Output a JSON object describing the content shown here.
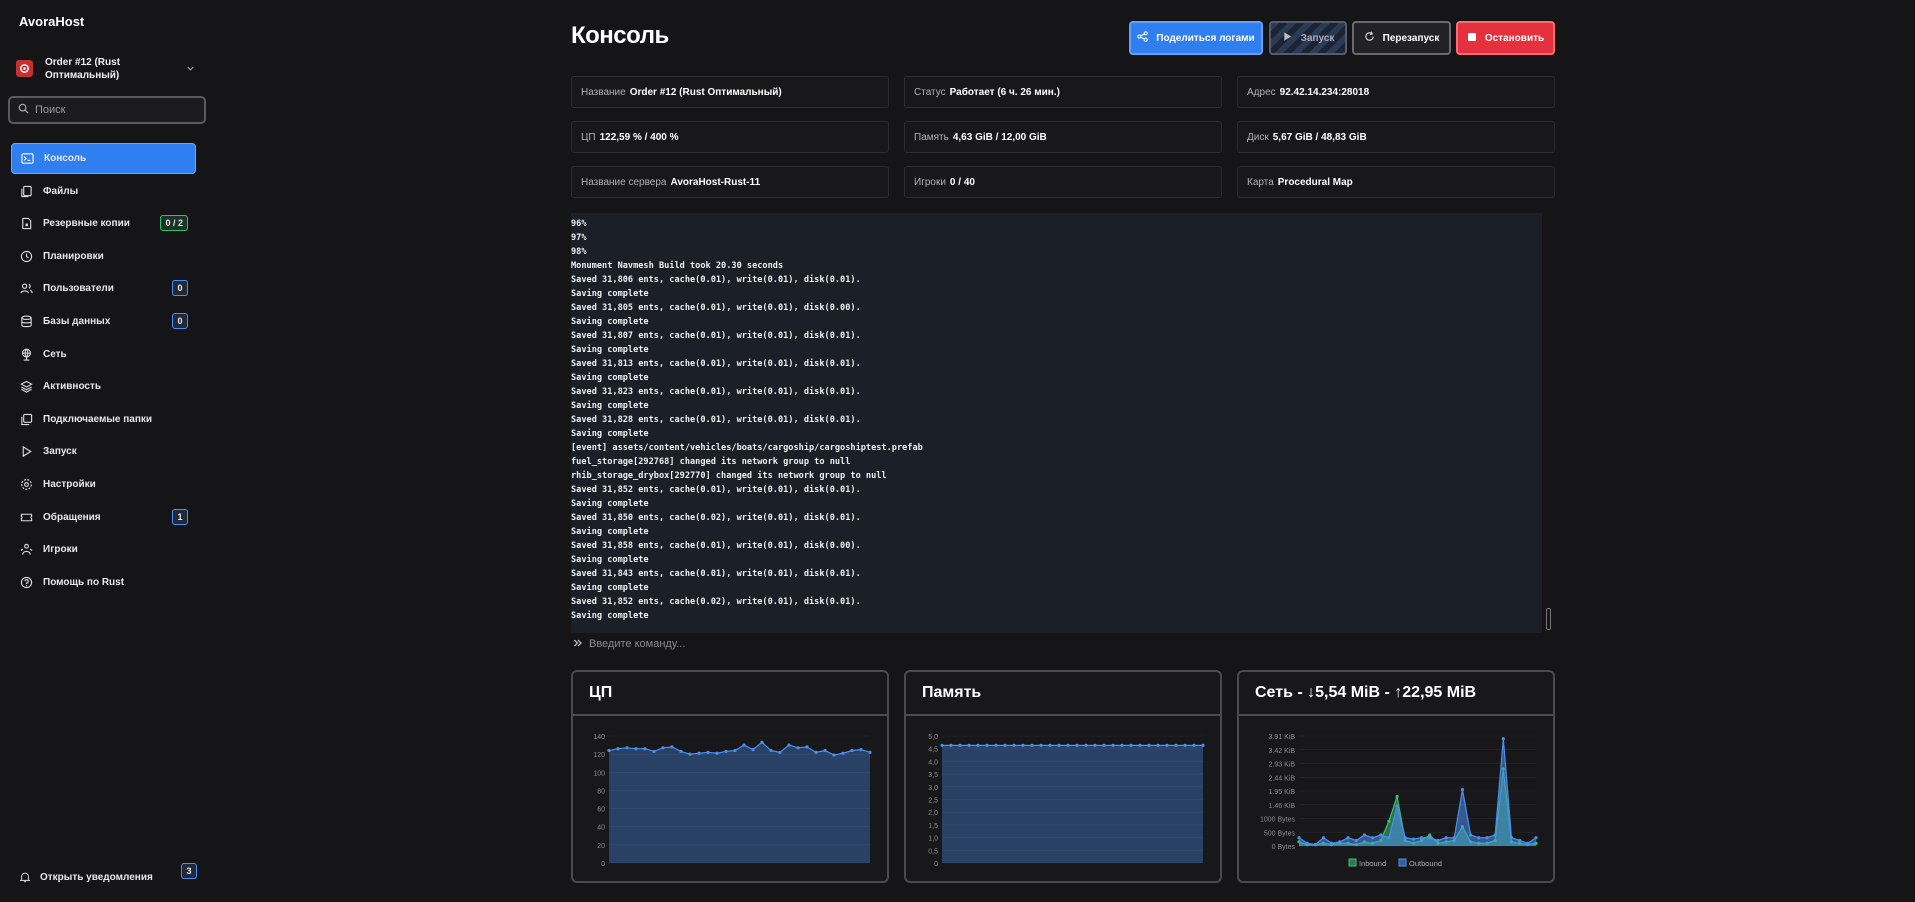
{
  "brand": "AvoraHost",
  "server": {
    "name": "Order #12 (Rust Оптимальный)"
  },
  "search": {
    "placeholder": "Поиск"
  },
  "nav": [
    {
      "label": "Консоль",
      "icon": "terminal-icon",
      "active": true
    },
    {
      "label": "Файлы",
      "icon": "files-icon"
    },
    {
      "label": "Резервные копии",
      "icon": "archive-icon",
      "badge": "0 / 2",
      "badge_color": "green"
    },
    {
      "label": "Планировки",
      "icon": "clock-icon"
    },
    {
      "label": "Пользователи",
      "icon": "users-icon",
      "badge": "0"
    },
    {
      "label": "Базы данных",
      "icon": "database-icon",
      "badge": "0"
    },
    {
      "label": "Сеть",
      "icon": "network-icon"
    },
    {
      "label": "Активность",
      "icon": "layers-icon"
    },
    {
      "label": "Подключаемые папки",
      "icon": "mount-icon"
    },
    {
      "label": "Запуск",
      "icon": "play-icon"
    },
    {
      "label": "Настройки",
      "icon": "gear-icon"
    },
    {
      "label": "Обращения",
      "icon": "ticket-icon",
      "badge": "1"
    },
    {
      "label": "Игроки",
      "icon": "players-icon"
    },
    {
      "label": "Помощь по Rust",
      "icon": "help-icon"
    }
  ],
  "notifications": {
    "label": "Открыть уведомления",
    "count": "3"
  },
  "page": {
    "title": "Консоль"
  },
  "buttons": {
    "share": "Поделиться логами",
    "start": "Запуск",
    "restart": "Перезапуск",
    "stop": "Остановить"
  },
  "info": [
    {
      "label": "Название",
      "value": "Order #12 (Rust Оптимальный)"
    },
    {
      "label": "Статус",
      "value": "Работает (6 ч. 26 мин.)"
    },
    {
      "label": "Адрес",
      "value": "92.42.14.234:28018"
    },
    {
      "label": "ЦП",
      "value": "122,59 % / 400 %"
    },
    {
      "label": "Память",
      "value": "4,63 GiB / 12,00 GiB"
    },
    {
      "label": "Диск",
      "value": "5,67 GiB / 48,83 GiB"
    },
    {
      "label": "Название сервера",
      "value": "AvoraHost-Rust-11"
    },
    {
      "label": "Игроки",
      "value": "0 / 40"
    },
    {
      "label": "Карта",
      "value": "Procedural Map"
    }
  ],
  "console": [
    "96%",
    "97%",
    "98%",
    "Monument Navmesh Build took 20.30 seconds",
    "Saved 31,806 ents, cache(0.01), write(0.01), disk(0.01).",
    "Saving complete",
    "Saved 31,805 ents, cache(0.01), write(0.01), disk(0.00).",
    "Saving complete",
    "Saved 31,807 ents, cache(0.01), write(0.01), disk(0.01).",
    "Saving complete",
    "Saved 31,813 ents, cache(0.01), write(0.01), disk(0.01).",
    "Saving complete",
    "Saved 31,823 ents, cache(0.01), write(0.01), disk(0.01).",
    "Saving complete",
    "Saved 31,828 ents, cache(0.01), write(0.01), disk(0.01).",
    "Saving complete",
    "[event] assets/content/vehicles/boats/cargoship/cargoshiptest.prefab",
    "fuel_storage[292768] changed its network group to null",
    "rhib_storage_drybox[292770] changed its network group to null",
    "Saved 31,852 ents, cache(0.01), write(0.01), disk(0.01).",
    "Saving complete",
    "Saved 31,850 ents, cache(0.02), write(0.01), disk(0.01).",
    "Saving complete",
    "Saved 31,858 ents, cache(0.01), write(0.01), disk(0.00).",
    "Saving complete",
    "Saved 31,843 ents, cache(0.01), write(0.01), disk(0.01).",
    "Saving complete",
    "Saved 31,852 ents, cache(0.02), write(0.01), disk(0.01).",
    "Saving complete"
  ],
  "command": {
    "placeholder": "Введите команду..."
  },
  "chart_data": [
    {
      "type": "area",
      "title": "ЦП",
      "ylim": [
        0,
        140
      ],
      "yticks": [
        "0",
        "20",
        "40",
        "60",
        "80",
        "100",
        "120",
        "140"
      ],
      "values": [
        124,
        126,
        127,
        126,
        126,
        123,
        127,
        128,
        123,
        120,
        121,
        122,
        121,
        123,
        124,
        130,
        125,
        133,
        124,
        122,
        130,
        127,
        128,
        122,
        124,
        119,
        121,
        124,
        125,
        122
      ],
      "color": "#4a8ff0"
    },
    {
      "type": "area",
      "title": "Память",
      "ylim": [
        0,
        5
      ],
      "yticks": [
        "0",
        "0,5",
        "1,0",
        "1,5",
        "2,0",
        "2,5",
        "3,0",
        "3,5",
        "4,0",
        "4,5",
        "5,0"
      ],
      "values": [
        4.63,
        4.63,
        4.63,
        4.63,
        4.63,
        4.63,
        4.63,
        4.63,
        4.63,
        4.63,
        4.63,
        4.63,
        4.63,
        4.63,
        4.63,
        4.63,
        4.63,
        4.63,
        4.63,
        4.63,
        4.63,
        4.63,
        4.63,
        4.63,
        4.63,
        4.63,
        4.63,
        4.63,
        4.63,
        4.63
      ],
      "color": "#4a8ff0"
    },
    {
      "type": "area",
      "title": "Сеть - ↓5,54 MiB - ↑22,95 MiB",
      "ylim": [
        0,
        8
      ],
      "yticks": [
        "0 Bytes",
        "500 Bytes",
        "1000 Bytes",
        "1.46 KiB",
        "1.95 KiB",
        "2.44 KiB",
        "2.93 KiB",
        "3.42 KiB",
        "3.91 KiB"
      ],
      "legend": [
        "Inbound",
        "Outbound"
      ],
      "series": [
        {
          "name": "Inbound",
          "color": "#3dbd6e",
          "values": [
            0.3,
            0.1,
            0.1,
            0.2,
            0.1,
            0.2,
            0.2,
            0.1,
            0.3,
            0.2,
            0.4,
            1.8,
            3.6,
            0.4,
            0.2,
            0.4,
            0.8,
            0.2,
            0.3,
            0.4,
            1.4,
            0.3,
            0.2,
            0.2,
            0.4,
            5.6,
            0.3,
            0.2,
            0.1,
            0.2
          ]
        },
        {
          "name": "Outbound",
          "color": "#4a8ff0",
          "values": [
            0.6,
            0.2,
            0.1,
            0.6,
            0.2,
            0.3,
            0.6,
            0.4,
            0.8,
            0.6,
            0.8,
            0.6,
            2.9,
            0.6,
            0.5,
            0.6,
            0.6,
            0.4,
            0.6,
            0.6,
            4.1,
            0.8,
            0.6,
            0.6,
            0.8,
            7.8,
            0.6,
            0.4,
            0.2,
            0.6
          ]
        }
      ]
    }
  ]
}
